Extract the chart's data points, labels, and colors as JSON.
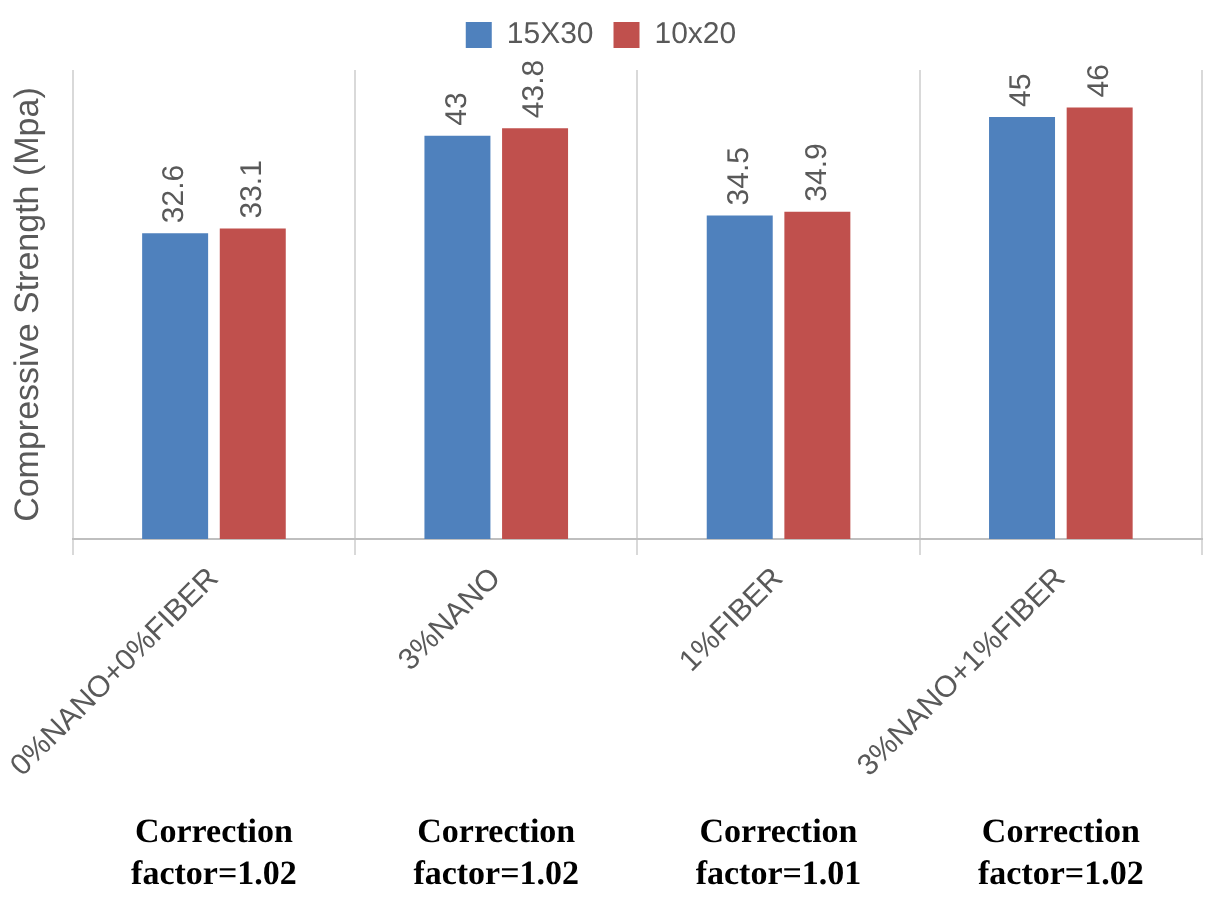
{
  "chart_data": {
    "type": "bar",
    "ylabel": "Compressive Strength (Mpa)",
    "categories": [
      "0%NANO+0%FIBER",
      "3%NANO",
      "1%FIBER",
      "3%NANO+1%FIBER"
    ],
    "series": [
      {
        "name": "15X30",
        "color": "#4f81bd",
        "values": [
          32.6,
          43,
          34.5,
          45
        ]
      },
      {
        "name": "10x20",
        "color": "#c0504d",
        "values": [
          33.1,
          43.8,
          34.9,
          46
        ]
      }
    ],
    "ylim": [
      0,
      50
    ],
    "data_labels": true,
    "grid": "x",
    "legend": "top",
    "annotations": [
      "Correction factor=1.02",
      "Correction factor=1.02",
      "Correction factor=1.01",
      "Correction factor=1.02"
    ]
  }
}
